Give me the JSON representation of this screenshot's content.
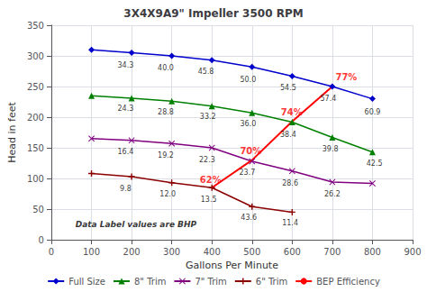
{
  "chart_data": {
    "type": "line",
    "title": "3X4X9A9\" Impeller 3500 RPM",
    "x_label": "Gallons Per Minute",
    "y_label": "Head in feet",
    "xlim": [
      0,
      900
    ],
    "ylim": [
      0,
      350
    ],
    "xticks": [
      0,
      100,
      200,
      300,
      400,
      500,
      600,
      700,
      800,
      900
    ],
    "yticks": [
      0,
      50,
      100,
      150,
      200,
      250,
      300,
      350
    ],
    "grid": true,
    "legend": "bottom",
    "series": [
      {
        "name": "Full Size",
        "color": "#0000CC",
        "marker": "diamond",
        "x": [
          100,
          200,
          300,
          400,
          500,
          600,
          700,
          800
        ],
        "values": [
          310,
          305,
          300,
          293,
          282,
          267,
          250,
          230
        ],
        "annotations": [
          {
            "x": 185,
            "y": 292,
            "text": "34.3"
          },
          {
            "x": 285,
            "y": 287,
            "text": "40.0"
          },
          {
            "x": 385,
            "y": 281,
            "text": "45.8"
          },
          {
            "x": 490,
            "y": 269,
            "text": "50.0"
          },
          {
            "x": 590,
            "y": 255,
            "text": "54.5"
          },
          {
            "x": 690,
            "y": 237,
            "text": "57.4"
          },
          {
            "x": 800,
            "y": 216,
            "text": "60.9"
          }
        ]
      },
      {
        "name": "8\" Trim",
        "color": "#008000",
        "marker": "triangle",
        "x": [
          100,
          200,
          300,
          400,
          500,
          600,
          700,
          800
        ],
        "values": [
          235,
          231,
          226,
          218,
          207,
          192,
          167,
          143
        ],
        "annotations": [
          {
            "x": 185,
            "y": 221,
            "text": "24.3"
          },
          {
            "x": 285,
            "y": 215,
            "text": "28.8"
          },
          {
            "x": 390,
            "y": 208,
            "text": "33.2"
          },
          {
            "x": 490,
            "y": 196,
            "text": "36.0"
          },
          {
            "x": 590,
            "y": 179,
            "text": "38.4"
          },
          {
            "x": 695,
            "y": 155,
            "text": "39.8"
          },
          {
            "x": 805,
            "y": 132,
            "text": "42.5"
          }
        ]
      },
      {
        "name": "7\" Trim",
        "color": "#800080",
        "marker": "x",
        "x": [
          100,
          200,
          300,
          400,
          500,
          600,
          700,
          800
        ],
        "values": [
          165,
          162,
          157,
          150,
          128,
          112,
          94,
          92
        ],
        "annotations": [
          {
            "x": 185,
            "y": 151,
            "text": "16.4"
          },
          {
            "x": 285,
            "y": 145,
            "text": "19.2"
          },
          {
            "x": 388,
            "y": 137,
            "text": "22.3"
          },
          {
            "x": 488,
            "y": 117,
            "text": "23.7"
          },
          {
            "x": 595,
            "y": 100,
            "text": "28.6"
          },
          {
            "x": 700,
            "y": 82,
            "text": "26.2"
          }
        ]
      },
      {
        "name": "6\" Trim",
        "color": "#8B0000",
        "marker": "plus",
        "x": [
          100,
          200,
          300,
          400,
          500,
          600
        ],
        "values": [
          108,
          103,
          93,
          85,
          54,
          45
        ],
        "annotations": [
          {
            "x": 185,
            "y": 91,
            "text": "9.8"
          },
          {
            "x": 290,
            "y": 81,
            "text": "12.0"
          },
          {
            "x": 392,
            "y": 73,
            "text": "13.5"
          },
          {
            "x": 492,
            "y": 43,
            "text": "43.6"
          },
          {
            "x": 595,
            "y": 35,
            "text": "11.4"
          }
        ]
      },
      {
        "name": "BEP Efficiency",
        "color": "#FF0000",
        "x": [
          400,
          500,
          600,
          700
        ],
        "values": [
          85,
          130,
          193,
          250
        ],
        "annotations": [
          {
            "x": 370,
            "y": 90,
            "text": "62%"
          },
          {
            "x": 470,
            "y": 138,
            "text": "70%"
          },
          {
            "x": 572,
            "y": 201,
            "text": "74%"
          },
          {
            "x": 708,
            "y": 258,
            "text": "77%"
          }
        ]
      }
    ],
    "annotations": [
      {
        "x": 60,
        "y": 18,
        "text": "Data Label values are BHP"
      }
    ]
  }
}
